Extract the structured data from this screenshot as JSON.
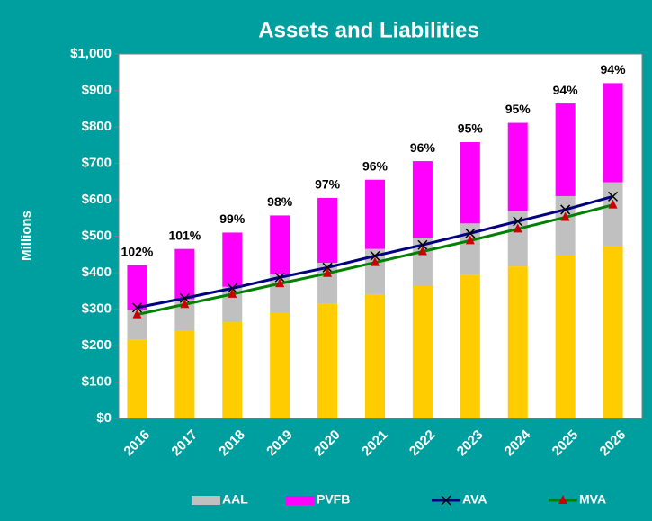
{
  "chart_data": {
    "type": "bar",
    "title": "Assets and Liabilities",
    "ylabel": "Millions",
    "categories": [
      "2016",
      "2017",
      "2018",
      "2019",
      "2020",
      "2021",
      "2022",
      "2023",
      "2024",
      "2025",
      "2026"
    ],
    "series": [
      {
        "color": "#ffcc00",
        "values": [
          217,
          242,
          264,
          289,
          314,
          341,
          363,
          393,
          417,
          447,
          474
        ]
      },
      {
        "name": "AAL",
        "color": "#c0c0c0",
        "values": [
          81,
          85,
          97,
          106,
          113,
          124,
          133,
          142,
          152,
          163,
          174
        ]
      },
      {
        "name": "PVFB",
        "color": "#ff00ff",
        "values": [
          122,
          138,
          149,
          162,
          178,
          190,
          210,
          223,
          242,
          254,
          272
        ]
      },
      {
        "name": "AVA",
        "type": "line",
        "color": "#000080",
        "marker": "x",
        "values": [
          304,
          330,
          357,
          387,
          414,
          446,
          476,
          508,
          541,
          573,
          609
        ]
      },
      {
        "name": "MVA",
        "type": "line",
        "color": "#008000",
        "marker": "triangle",
        "values": [
          285,
          313,
          341,
          370,
          398,
          428,
          458,
          488,
          520,
          552,
          586
        ]
      }
    ],
    "data_labels": {
      "values": [
        102,
        101,
        99,
        98,
        97,
        96,
        96,
        95,
        95,
        94,
        94
      ],
      "value_labels": [
        "102%",
        "101%",
        "99%",
        "98%",
        "97%",
        "96%",
        "96%",
        "95%",
        "95%",
        "94%",
        "94%"
      ]
    },
    "ylim": [
      0,
      1000
    ],
    "yticks": [
      {
        "value": 0,
        "label": "$0"
      },
      {
        "value": 100,
        "label": "$100"
      },
      {
        "value": 200,
        "label": "$200"
      },
      {
        "value": 300,
        "label": "$300"
      },
      {
        "value": 400,
        "label": "$400"
      },
      {
        "value": 500,
        "label": "$500"
      },
      {
        "value": 600,
        "label": "$600"
      },
      {
        "value": 700,
        "label": "$700"
      },
      {
        "value": 800,
        "label": "$800"
      },
      {
        "value": 900,
        "label": "$900"
      },
      {
        "value": 1000,
        "label": "$1,000"
      }
    ]
  }
}
